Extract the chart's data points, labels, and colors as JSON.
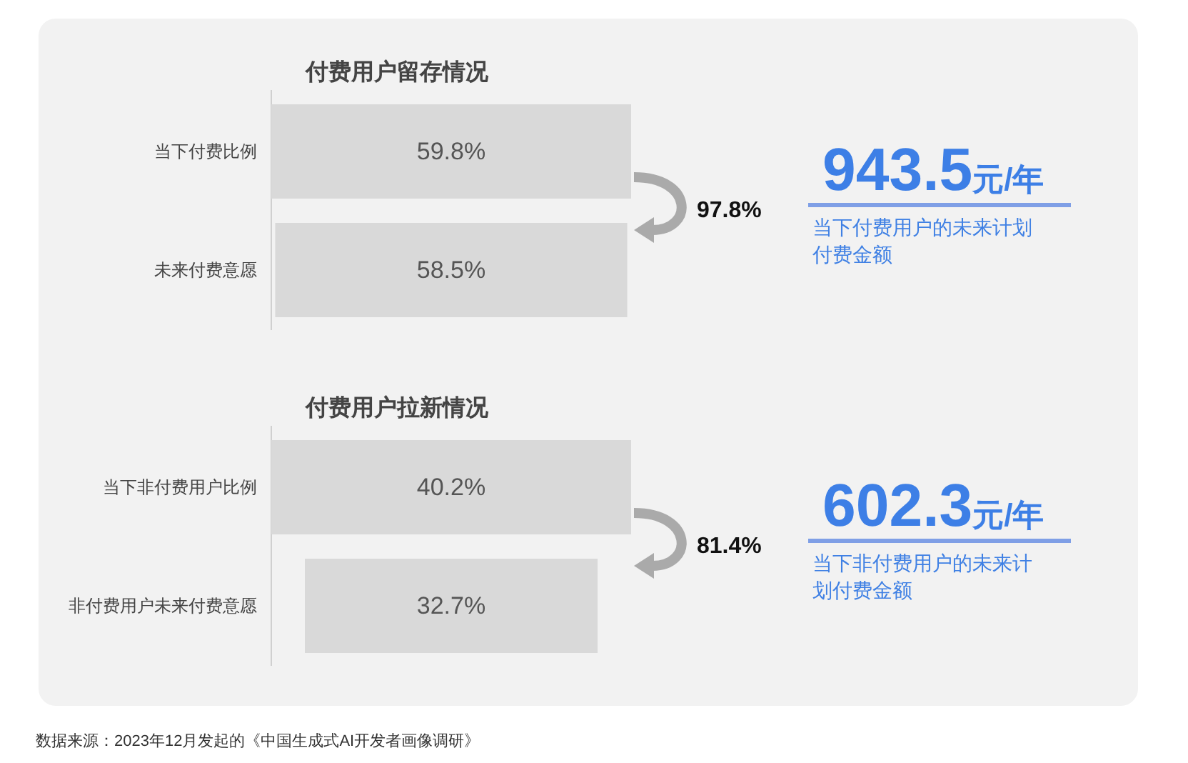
{
  "chart_data": [
    {
      "type": "other",
      "title": "付费用户留存情况",
      "categories": [
        "当下付费比例",
        "未来付费意愿"
      ],
      "values": [
        59.8,
        58.5
      ],
      "value_labels": [
        "59.8%",
        "58.5%"
      ],
      "color": "#d9d9d9",
      "annotations": [
        "97.8%"
      ]
    },
    {
      "type": "other",
      "annotations": [
        "943.5元/年",
        "当下付费用户的未来计划付费金额"
      ]
    },
    {
      "type": "other",
      "title": "付费用户拉新情况",
      "categories": [
        "当下非付费用户比例",
        "非付费用户未来付费意愿"
      ],
      "values": [
        40.2,
        32.7
      ],
      "value_labels": [
        "40.2%",
        "32.7%"
      ],
      "color": "#d9d9d9",
      "annotations": [
        "81.4%"
      ]
    },
    {
      "type": "other",
      "annotations": [
        "602.3元/年",
        "当下非付费用户的未来计划付费金额",
        "数据来源：2023年12月发起的《中国生成式AI开发者画像调研》"
      ]
    }
  ]
}
